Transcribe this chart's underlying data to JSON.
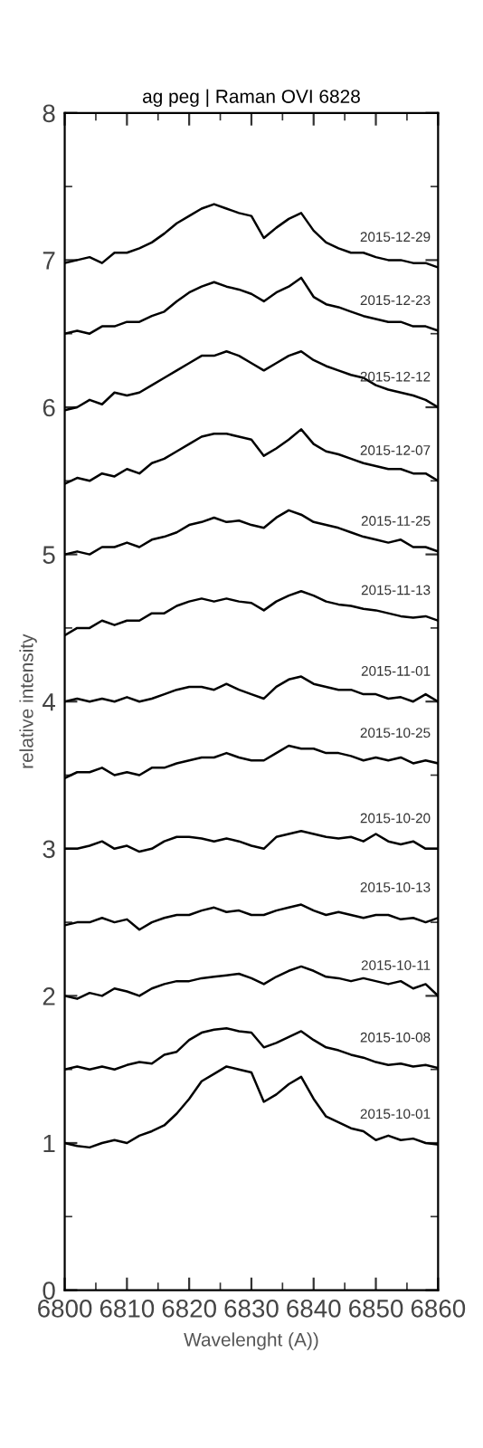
{
  "chart_data": {
    "type": "line",
    "title": "ag peg | Raman OVI 6828",
    "xlabel": "Wavelenght (A))",
    "ylabel": "relative intensity",
    "x": [
      6800,
      6802,
      6804,
      6806,
      6808,
      6810,
      6812,
      6814,
      6816,
      6818,
      6820,
      6822,
      6824,
      6826,
      6828,
      6830,
      6832,
      6834,
      6836,
      6838,
      6840,
      6842,
      6844,
      6846,
      6848,
      6850,
      6852,
      6854,
      6856,
      6858,
      6860
    ],
    "xlim": [
      6800,
      6860
    ],
    "xticks": [
      6800,
      6810,
      6820,
      6830,
      6840,
      6850,
      6860
    ],
    "ylim": [
      0,
      8
    ],
    "yticks": [
      0,
      1,
      2,
      3,
      4,
      5,
      6,
      7,
      8
    ],
    "grid": false,
    "legend": false,
    "marker": "none",
    "line_style": "solid",
    "series": [
      {
        "name": "2015-10-01",
        "color": "#000000",
        "values": [
          1.0,
          0.98,
          0.97,
          1.0,
          1.02,
          1.0,
          1.05,
          1.08,
          1.12,
          1.2,
          1.3,
          1.42,
          1.47,
          1.52,
          1.5,
          1.48,
          1.28,
          1.33,
          1.4,
          1.45,
          1.3,
          1.18,
          1.14,
          1.1,
          1.08,
          1.02,
          1.05,
          1.02,
          1.03,
          1.0,
          0.99
        ]
      },
      {
        "name": "2015-10-08",
        "color": "#000000",
        "values": [
          1.5,
          1.52,
          1.5,
          1.52,
          1.5,
          1.53,
          1.55,
          1.54,
          1.6,
          1.62,
          1.7,
          1.75,
          1.77,
          1.78,
          1.76,
          1.75,
          1.65,
          1.68,
          1.72,
          1.76,
          1.7,
          1.65,
          1.63,
          1.6,
          1.58,
          1.55,
          1.53,
          1.54,
          1.52,
          1.53,
          1.51
        ]
      },
      {
        "name": "2015-10-11",
        "color": "#000000",
        "values": [
          2.0,
          1.98,
          2.02,
          2.0,
          2.05,
          2.03,
          2.0,
          2.05,
          2.08,
          2.1,
          2.1,
          2.12,
          2.13,
          2.14,
          2.15,
          2.12,
          2.08,
          2.13,
          2.17,
          2.2,
          2.17,
          2.13,
          2.12,
          2.1,
          2.12,
          2.1,
          2.08,
          2.1,
          2.05,
          2.08,
          2.0
        ]
      },
      {
        "name": "2015-10-13",
        "color": "#000000",
        "values": [
          2.48,
          2.5,
          2.5,
          2.53,
          2.5,
          2.52,
          2.45,
          2.5,
          2.53,
          2.55,
          2.55,
          2.58,
          2.6,
          2.57,
          2.58,
          2.55,
          2.55,
          2.58,
          2.6,
          2.62,
          2.58,
          2.55,
          2.57,
          2.55,
          2.53,
          2.55,
          2.55,
          2.52,
          2.53,
          2.5,
          2.53
        ]
      },
      {
        "name": "2015-10-20",
        "color": "#000000",
        "values": [
          3.0,
          3.0,
          3.02,
          3.05,
          3.0,
          3.02,
          2.98,
          3.0,
          3.05,
          3.08,
          3.08,
          3.07,
          3.05,
          3.07,
          3.05,
          3.02,
          3.0,
          3.08,
          3.1,
          3.12,
          3.1,
          3.08,
          3.07,
          3.08,
          3.05,
          3.1,
          3.05,
          3.03,
          3.05,
          3.0,
          3.0
        ]
      },
      {
        "name": "2015-10-25",
        "color": "#000000",
        "values": [
          3.48,
          3.52,
          3.52,
          3.55,
          3.5,
          3.52,
          3.5,
          3.55,
          3.55,
          3.58,
          3.6,
          3.62,
          3.62,
          3.65,
          3.62,
          3.6,
          3.6,
          3.65,
          3.7,
          3.68,
          3.68,
          3.65,
          3.65,
          3.63,
          3.6,
          3.62,
          3.6,
          3.62,
          3.58,
          3.6,
          3.58
        ]
      },
      {
        "name": "2015-11-01",
        "color": "#000000",
        "values": [
          4.0,
          4.02,
          4.0,
          4.02,
          4.0,
          4.03,
          4.0,
          4.02,
          4.05,
          4.08,
          4.1,
          4.1,
          4.08,
          4.12,
          4.08,
          4.05,
          4.02,
          4.1,
          4.15,
          4.17,
          4.12,
          4.1,
          4.08,
          4.08,
          4.05,
          4.05,
          4.02,
          4.03,
          4.0,
          4.05,
          4.0
        ]
      },
      {
        "name": "2015-11-13",
        "color": "#000000",
        "values": [
          4.45,
          4.5,
          4.5,
          4.55,
          4.52,
          4.55,
          4.55,
          4.6,
          4.6,
          4.65,
          4.68,
          4.7,
          4.68,
          4.7,
          4.68,
          4.67,
          4.62,
          4.68,
          4.72,
          4.75,
          4.72,
          4.68,
          4.66,
          4.65,
          4.63,
          4.62,
          4.6,
          4.58,
          4.57,
          4.58,
          4.55
        ]
      },
      {
        "name": "2015-11-25",
        "color": "#000000",
        "values": [
          5.0,
          5.02,
          5.0,
          5.05,
          5.05,
          5.08,
          5.05,
          5.1,
          5.12,
          5.15,
          5.2,
          5.22,
          5.25,
          5.22,
          5.23,
          5.2,
          5.18,
          5.25,
          5.3,
          5.27,
          5.22,
          5.2,
          5.18,
          5.15,
          5.12,
          5.1,
          5.08,
          5.1,
          5.05,
          5.05,
          5.02
        ]
      },
      {
        "name": "2015-12-07",
        "color": "#000000",
        "values": [
          5.48,
          5.52,
          5.5,
          5.55,
          5.53,
          5.58,
          5.55,
          5.62,
          5.65,
          5.7,
          5.75,
          5.8,
          5.82,
          5.82,
          5.8,
          5.78,
          5.67,
          5.72,
          5.78,
          5.85,
          5.75,
          5.7,
          5.68,
          5.65,
          5.62,
          5.6,
          5.58,
          5.58,
          5.55,
          5.55,
          5.5
        ]
      },
      {
        "name": "2015-12-12",
        "color": "#000000",
        "values": [
          5.98,
          6.0,
          6.05,
          6.02,
          6.1,
          6.08,
          6.1,
          6.15,
          6.2,
          6.25,
          6.3,
          6.35,
          6.35,
          6.38,
          6.35,
          6.3,
          6.25,
          6.3,
          6.35,
          6.38,
          6.32,
          6.28,
          6.25,
          6.22,
          6.2,
          6.15,
          6.12,
          6.1,
          6.08,
          6.05,
          6.0
        ]
      },
      {
        "name": "2015-12-23",
        "color": "#000000",
        "values": [
          6.5,
          6.52,
          6.5,
          6.55,
          6.55,
          6.58,
          6.58,
          6.62,
          6.65,
          6.72,
          6.78,
          6.82,
          6.85,
          6.82,
          6.8,
          6.77,
          6.72,
          6.78,
          6.82,
          6.88,
          6.75,
          6.7,
          6.68,
          6.65,
          6.62,
          6.6,
          6.58,
          6.58,
          6.55,
          6.55,
          6.52
        ]
      },
      {
        "name": "2015-12-29",
        "color": "#000000",
        "values": [
          6.98,
          7.0,
          7.02,
          6.98,
          7.05,
          7.05,
          7.08,
          7.12,
          7.18,
          7.25,
          7.3,
          7.35,
          7.38,
          7.35,
          7.32,
          7.3,
          7.15,
          7.22,
          7.28,
          7.32,
          7.2,
          7.12,
          7.08,
          7.05,
          7.05,
          7.02,
          7.0,
          7.0,
          6.98,
          6.98,
          6.95
        ]
      }
    ]
  }
}
